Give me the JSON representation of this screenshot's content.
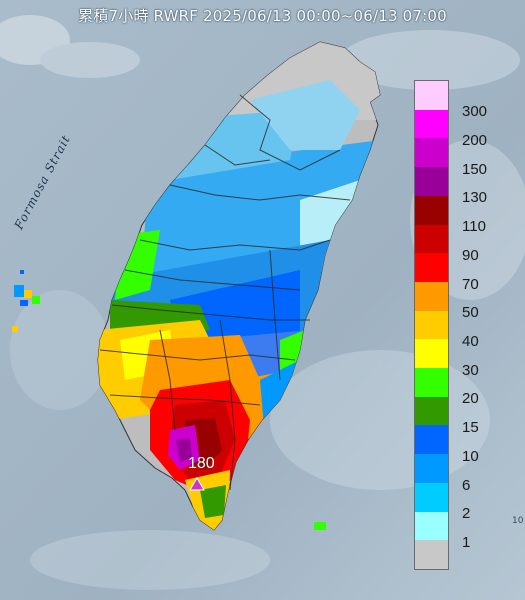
{
  "title": "累積7小時 RWRF 2025/06/13 00:00~06/13 07:00",
  "map_labels": {
    "strait": "Formosa Strait",
    "max_value": "180"
  },
  "edge_mark": "10",
  "legend": {
    "levels": [
      {
        "label": "300",
        "color": "#ffccff"
      },
      {
        "label": "200",
        "color": "#ff00ff"
      },
      {
        "label": "150",
        "color": "#cc00cc"
      },
      {
        "label": "130",
        "color": "#990099"
      },
      {
        "label": "110",
        "color": "#990000"
      },
      {
        "label": "90",
        "color": "#cc0000"
      },
      {
        "label": "70",
        "color": "#ff0000"
      },
      {
        "label": "50",
        "color": "#ff9900"
      },
      {
        "label": "40",
        "color": "#ffcc00"
      },
      {
        "label": "30",
        "color": "#ffff00"
      },
      {
        "label": "20",
        "color": "#33ff00"
      },
      {
        "label": "15",
        "color": "#339900"
      },
      {
        "label": "10",
        "color": "#0066ff"
      },
      {
        "label": "6",
        "color": "#0099ff"
      },
      {
        "label": "2",
        "color": "#00ccff"
      },
      {
        "label": "1",
        "color": "#99ffff"
      },
      {
        "label": "",
        "color": "#c8c8c8"
      }
    ]
  },
  "colors": {
    "sea": "#9fb3c4",
    "land_base": "#bdbdbd",
    "borders": "#2b2b2b",
    "max_marker": "#cc33cc"
  }
}
